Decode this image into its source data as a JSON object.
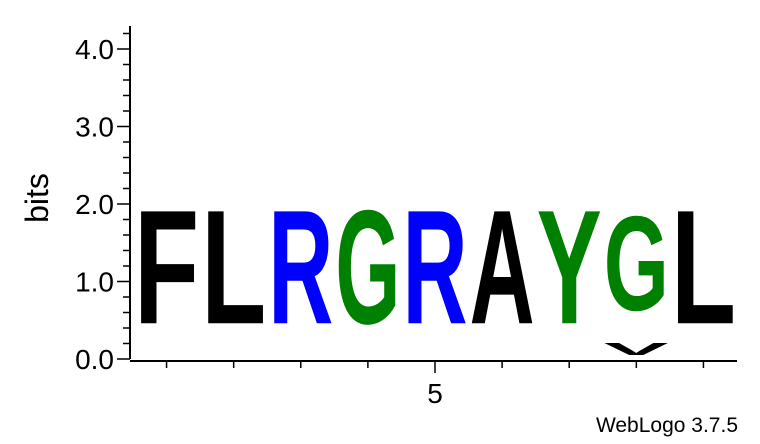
{
  "chart_data": {
    "type": "sequence-logo",
    "ylabel": "bits",
    "ylim": [
      0,
      4.3
    ],
    "yticks": [
      {
        "value": 0.0,
        "label": "0.0"
      },
      {
        "value": 1.0,
        "label": "1.0"
      },
      {
        "value": 2.0,
        "label": "2.0"
      },
      {
        "value": 3.0,
        "label": "3.0"
      },
      {
        "value": 4.0,
        "label": "4.0"
      }
    ],
    "xlim": [
      0.5,
      9.5
    ],
    "xticks": [
      {
        "value": 5,
        "label": "5"
      }
    ],
    "positions": [
      {
        "pos": 1,
        "letters": [
          {
            "char": "F",
            "bits": 2.35,
            "color": "#000000"
          }
        ]
      },
      {
        "pos": 2,
        "letters": [
          {
            "char": "L",
            "bits": 2.35,
            "color": "#000000"
          }
        ]
      },
      {
        "pos": 3,
        "letters": [
          {
            "char": "R",
            "bits": 2.35,
            "color": "#0000ff"
          }
        ]
      },
      {
        "pos": 4,
        "letters": [
          {
            "char": "G",
            "bits": 2.35,
            "color": "#008000"
          }
        ]
      },
      {
        "pos": 5,
        "letters": [
          {
            "char": "R",
            "bits": 2.35,
            "color": "#0000ff"
          }
        ]
      },
      {
        "pos": 6,
        "letters": [
          {
            "char": "A",
            "bits": 2.35,
            "color": "#000000"
          }
        ]
      },
      {
        "pos": 7,
        "letters": [
          {
            "char": "Y",
            "bits": 2.35,
            "color": "#008000"
          }
        ]
      },
      {
        "pos": 8,
        "letters": [
          {
            "char": "V",
            "bits": 0.25,
            "color": "#000000"
          },
          {
            "char": "G",
            "bits": 1.95,
            "color": "#008000"
          }
        ]
      },
      {
        "pos": 9,
        "letters": [
          {
            "char": "L",
            "bits": 2.35,
            "color": "#000000"
          }
        ]
      }
    ]
  },
  "credit": "WebLogo 3.7.5"
}
